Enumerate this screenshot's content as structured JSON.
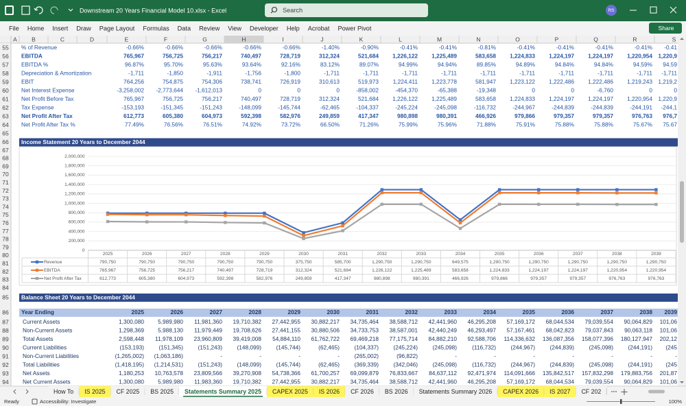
{
  "window": {
    "title": "Downstream 20 Years Financial Model 10.xlsx  -  Excel",
    "search": "Search",
    "user": "RS"
  },
  "ribbon": {
    "tabs": [
      "File",
      "Home",
      "Insert",
      "Draw",
      "Page Layout",
      "Formulas",
      "Data",
      "Review",
      "View",
      "Developer",
      "Help",
      "Acrobat",
      "Power Pivot"
    ],
    "share": "Share"
  },
  "columns": [
    "A",
    "B",
    "C",
    "D",
    "E",
    "F",
    "G",
    "H",
    "I",
    "J",
    "K",
    "L",
    "M",
    "N",
    "O",
    "P",
    "Q",
    "R",
    "S"
  ],
  "selected_column": "H",
  "row_numbers": [
    55,
    56,
    57,
    58,
    59,
    60,
    61,
    62,
    63,
    64,
    65,
    66,
    67,
    68,
    69,
    70,
    71,
    72,
    73,
    74,
    75,
    76,
    77,
    78,
    79,
    80,
    81,
    82,
    83,
    84,
    85,
    86,
    87,
    88,
    89,
    90,
    91,
    92,
    93,
    94
  ],
  "income_rows": [
    {
      "label": "% of Revenue",
      "cells": [
        "-0.66%",
        "-0.66%",
        "-0.66%",
        "-0.66%",
        "-0.66%",
        "-1.40%",
        "-0.90%",
        "-0.41%",
        "-0.41%",
        "-0.81%",
        "-0.41%",
        "-0.41%",
        "-0.41%",
        "-0.41%",
        "-0.41"
      ]
    },
    {
      "label": "EBITDA",
      "bold": true,
      "cells": [
        "765,967",
        "756,725",
        "756,217",
        "740,497",
        "728,719",
        "312,324",
        "521,684",
        "1,226,122",
        "1,225,489",
        "583,658",
        "1,224,833",
        "1,224,197",
        "1,224,197",
        "1,220,954",
        "1,220,9"
      ]
    },
    {
      "label": "EBITDA %",
      "cells": [
        "96.87%",
        "95.70%",
        "95.63%",
        "93.64%",
        "92.16%",
        "83.12%",
        "89.07%",
        "94.99%",
        "94.94%",
        "89.85%",
        "94.89%",
        "94.84%",
        "94.84%",
        "94.59%",
        "94.59"
      ]
    },
    {
      "label": "Depreciation & Amortization",
      "cells": [
        "-1,711",
        "-1,850",
        "-1,911",
        "-1,756",
        "-1,800",
        "-1,711",
        "-1,711",
        "-1,711",
        "-1,711",
        "-1,711",
        "-1,711",
        "-1,711",
        "-1,711",
        "-1,711",
        "-1,711"
      ]
    },
    {
      "label": "EBIT",
      "cells": [
        "764,256",
        "754,875",
        "754,306",
        "738,741",
        "726,919",
        "310,613",
        "519,973",
        "1,224,411",
        "1,223,778",
        "581,947",
        "1,223,122",
        "1,222,486",
        "1,222,486",
        "1,219,243",
        "1,219,2"
      ]
    },
    {
      "label": "Net Interest Expense",
      "cells": [
        "-3,258,002",
        "-2,773,644",
        "-1,612,013",
        "0",
        "0",
        "0",
        "-858,002",
        "-454,370",
        "-65,388",
        "-19,348",
        "0",
        "0",
        "-6,760",
        "0",
        "0"
      ]
    },
    {
      "label": "Net Profit Before Tax",
      "cells": [
        "765,967",
        "756,725",
        "756,217",
        "740,497",
        "728,719",
        "312,324",
        "521,684",
        "1,226,122",
        "1,225,489",
        "583,658",
        "1,224,833",
        "1,224,197",
        "1,224,197",
        "1,220,954",
        "1,220,9"
      ]
    },
    {
      "label": "Tax Expense",
      "cells": [
        "-153,193",
        "-151,345",
        "-151,243",
        "-148,099",
        "-145,744",
        "-62,465",
        "-104,337",
        "-245,224",
        "-245,098",
        "-116,732",
        "-244,967",
        "-244,839",
        "-244,839",
        "-244,191",
        "-244,1"
      ]
    },
    {
      "label": "Net Profit After Tax",
      "bold": true,
      "cells": [
        "612,773",
        "605,380",
        "604,973",
        "592,398",
        "582,976",
        "249,859",
        "417,347",
        "980,898",
        "980,391",
        "466,926",
        "979,866",
        "979,357",
        "979,357",
        "976,763",
        "976,7"
      ]
    },
    {
      "label": "Net Profit After Tax %",
      "cells": [
        "77.49%",
        "76.56%",
        "76.51%",
        "74.92%",
        "73.72%",
        "66.50%",
        "71.26%",
        "75.99%",
        "75.96%",
        "71.88%",
        "75.91%",
        "75.88%",
        "75.88%",
        "75.67%",
        "75.67"
      ]
    }
  ],
  "income_chart": {
    "title": "Income Statement 20 Years to December 2044",
    "type": "line",
    "categories": [
      "2025",
      "2026",
      "2027",
      "2028",
      "2029",
      "2030",
      "2031",
      "2032",
      "2033",
      "2034",
      "2035",
      "2036",
      "2037",
      "2038",
      "2039"
    ],
    "ylim": [
      0,
      2000000
    ],
    "yticks": [
      {
        "value": 0,
        "label": "0"
      },
      {
        "value": 200000,
        "label": "200,000"
      },
      {
        "value": 400000,
        "label": "400,000"
      },
      {
        "value": 600000,
        "label": "600,000"
      },
      {
        "value": 800000,
        "label": "800,000"
      },
      {
        "value": 1000000,
        "label": "1,000,000"
      },
      {
        "value": 1200000,
        "label": "1,200,000"
      },
      {
        "value": 1400000,
        "label": "1,400,000"
      },
      {
        "value": 1600000,
        "label": "1,600,000"
      },
      {
        "value": 1800000,
        "label": "1,800,000"
      },
      {
        "value": 2000000,
        "label": "2,000,000"
      }
    ],
    "series": [
      {
        "name": "Revenue",
        "color": "#4472c4",
        "values": [
          790750,
          790750,
          790750,
          790750,
          790750,
          375750,
          585700,
          1290750,
          1290750,
          649575,
          1290750,
          1290750,
          1290750,
          1290750,
          1290750
        ],
        "value_labels": [
          "790,750",
          "790,750",
          "790,750",
          "790,750",
          "790,750",
          "375,750",
          "585,700",
          "1,290,750",
          "1,290,750",
          "649,575",
          "1,290,750",
          "1,290,750",
          "1,290,750",
          "1,290,750",
          "1,290,750"
        ]
      },
      {
        "name": "EBITDA",
        "color": "#ed7d31",
        "values": [
          765967,
          756725,
          756217,
          740497,
          728719,
          312324,
          521684,
          1226122,
          1225489,
          583658,
          1224833,
          1224197,
          1224197,
          1220954,
          1220954
        ],
        "value_labels": [
          "765,967",
          "756,725",
          "756,217",
          "740,497",
          "728,719",
          "312,324",
          "521,684",
          "1,226,122",
          "1,225,489",
          "583,658",
          "1,224,833",
          "1,224,197",
          "1,224,197",
          "1,220,954",
          "1,220,954"
        ]
      },
      {
        "name": "Net Profit After Tax",
        "color": "#a5a5a5",
        "values": [
          612773,
          605380,
          604973,
          592398,
          582976,
          249859,
          417347,
          980898,
          980391,
          466926,
          979866,
          979357,
          979357,
          976763,
          976763
        ],
        "value_labels": [
          "612,773",
          "605,380",
          "604,973",
          "592,398",
          "582,976",
          "249,859",
          "417,347",
          "980,898",
          "980,391",
          "466,926",
          "979,866",
          "979,357",
          "979,357",
          "976,763",
          "976,763"
        ]
      }
    ]
  },
  "balance_sheet": {
    "title": "Balance Sheet 20 Years to December 2044",
    "header": {
      "label": "Year Ending",
      "years": [
        "2025",
        "2026",
        "2027",
        "2028",
        "2029",
        "2030",
        "2031",
        "2032",
        "2033",
        "2034",
        "2035",
        "2036",
        "2037",
        "2038",
        "2039"
      ]
    },
    "rows": [
      {
        "label": "Current Assets",
        "cells": [
          "1,300,080",
          "5,989,980",
          "11,981,360",
          "19,710,382",
          "27,442,955",
          "30,882,217",
          "34,735,464",
          "38,588,712",
          "42,441,960",
          "46,295,208",
          "57,169,172",
          "68,044,534",
          "79,039,554",
          "90,064,829",
          "101,06"
        ]
      },
      {
        "label": "Non-Current Assets",
        "cells": [
          "1,298,369",
          "5,988,130",
          "11,979,449",
          "19,708,626",
          "27,441,155",
          "30,880,506",
          "34,733,753",
          "38,587,001",
          "42,440,249",
          "46,293,497",
          "57,167,461",
          "68,042,823",
          "79,037,843",
          "90,063,118",
          "101,06"
        ]
      },
      {
        "label": "Total Assets",
        "cells": [
          "2,598,448",
          "11,978,109",
          "23,960,809",
          "39,419,008",
          "54,884,110",
          "61,762,722",
          "69,469,218",
          "77,175,714",
          "84,882,210",
          "92,588,706",
          "114,336,632",
          "136,087,356",
          "158,077,396",
          "180,127,947",
          "202,12"
        ]
      },
      {
        "label": "Current Liabilities",
        "cells": [
          "(153,193)",
          "(151,345)",
          "(151,243)",
          "(148,099)",
          "(145,744)",
          "(62,465)",
          "(104,337)",
          "(245,224)",
          "(245,098)",
          "(116,732)",
          "(244,967)",
          "(244,839)",
          "(245,098)",
          "(244,191)",
          "(245"
        ]
      },
      {
        "label": "Non-Current Liabilities",
        "cells": [
          "(1,265,002)",
          "(1,063,186)",
          "-",
          "-",
          "-",
          "-",
          "(265,002)",
          "(96,822)",
          "-",
          "-",
          "-",
          "-",
          "-",
          "-",
          "-"
        ]
      },
      {
        "label": "Total Liabilities",
        "cells": [
          "(1,418,195)",
          "(1,214,531)",
          "(151,243)",
          "(148,099)",
          "(145,744)",
          "(62,465)",
          "(369,339)",
          "(342,046)",
          "(245,098)",
          "(116,732)",
          "(244,967)",
          "(244,839)",
          "(245,098)",
          "(244,191)",
          "(245"
        ]
      },
      {
        "label": "Net Assets",
        "cells": [
          "1,180,253",
          "10,763,578",
          "23,809,566",
          "39,270,908",
          "54,738,366",
          "61,700,257",
          "69,099,879",
          "76,833,667",
          "84,637,112",
          "92,471,974",
          "114,091,666",
          "135,842,517",
          "157,832,298",
          "179,883,756",
          "201,87"
        ]
      },
      {
        "label": "Net Current Assets",
        "cells": [
          "1,300,080",
          "5,989,980",
          "11,983,360",
          "19,710,382",
          "27,442,955",
          "30,882,217",
          "34,735,464",
          "38,588,712",
          "42,441,960",
          "46,295,208",
          "57,169,172",
          "68,044,534",
          "79,039,554",
          "90,064,829",
          "101,06"
        ]
      }
    ]
  },
  "sheet_tabs": [
    {
      "label": "How To"
    },
    {
      "label": "IS 2025",
      "color": "#fff45c"
    },
    {
      "label": "CF 2025"
    },
    {
      "label": "BS 2025"
    },
    {
      "label": "Statements Summary 2025",
      "active": true
    },
    {
      "label": "CAPEX 2025",
      "color": "#fff45c"
    },
    {
      "label": "IS 2026",
      "color": "#fff45c"
    },
    {
      "label": "CF 2026"
    },
    {
      "label": "BS 2026"
    },
    {
      "label": "Statements Summary 2026"
    },
    {
      "label": "CAPEX 2026",
      "color": "#fff45c"
    },
    {
      "label": "IS 2027",
      "color": "#fff45c"
    },
    {
      "label": "CF 202"
    }
  ],
  "status": {
    "ready": "Ready",
    "accessibility": "Accessibility: Investigate",
    "zoom": "100%"
  }
}
